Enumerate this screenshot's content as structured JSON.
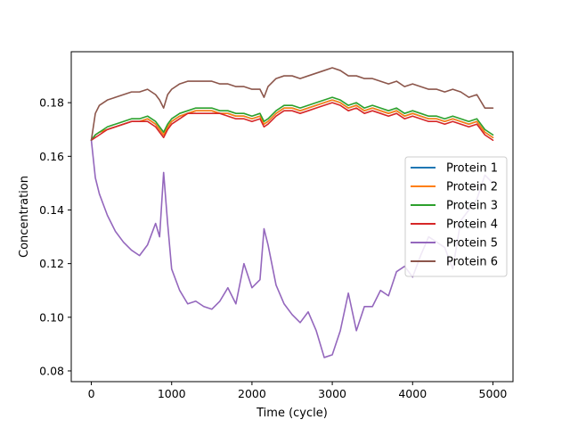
{
  "chart_data": {
    "type": "line",
    "title": "",
    "xlabel": "Time (cycle)",
    "ylabel": "Concentration",
    "xlim": [
      -250,
      5250
    ],
    "ylim": [
      0.076,
      0.199
    ],
    "xticks": [
      0,
      1000,
      2000,
      3000,
      4000,
      5000
    ],
    "xtick_labels": [
      "0",
      "1000",
      "2000",
      "3000",
      "4000",
      "5000"
    ],
    "yticks": [
      0.08,
      0.1,
      0.12,
      0.14,
      0.16,
      0.18
    ],
    "ytick_labels": [
      "0.08",
      "0.10",
      "0.12",
      "0.14",
      "0.16",
      "0.18"
    ],
    "grid": false,
    "legend_position": "center-right",
    "x": [
      0,
      50,
      100,
      200,
      300,
      400,
      500,
      600,
      700,
      800,
      850,
      900,
      950,
      1000,
      1100,
      1200,
      1300,
      1400,
      1500,
      1600,
      1700,
      1800,
      1900,
      2000,
      2100,
      2150,
      2200,
      2300,
      2400,
      2500,
      2600,
      2700,
      2800,
      2900,
      3000,
      3100,
      3200,
      3300,
      3400,
      3500,
      3600,
      3700,
      3800,
      3900,
      4000,
      4100,
      4200,
      4300,
      4400,
      4500,
      4600,
      4700,
      4800,
      4900,
      5000
    ],
    "series": [
      {
        "name": "Protein 1",
        "color": "#1f77b4",
        "values": [
          0.166,
          0.168,
          0.169,
          0.17,
          0.171,
          0.172,
          0.173,
          0.173,
          0.174,
          0.172,
          0.17,
          0.168,
          0.171,
          0.173,
          0.175,
          0.176,
          0.177,
          0.177,
          0.177,
          0.176,
          0.176,
          0.175,
          0.175,
          0.174,
          0.175,
          0.172,
          0.173,
          0.176,
          0.178,
          0.178,
          0.177,
          0.178,
          0.179,
          0.18,
          0.181,
          0.18,
          0.178,
          0.179,
          0.177,
          0.178,
          0.177,
          0.176,
          0.177,
          0.175,
          0.176,
          0.175,
          0.174,
          0.174,
          0.173,
          0.174,
          0.173,
          0.172,
          0.173,
          0.169,
          0.167
        ]
      },
      {
        "name": "Protein 2",
        "color": "#ff7f0e",
        "values": [
          0.166,
          0.168,
          0.169,
          0.17,
          0.171,
          0.172,
          0.173,
          0.173,
          0.174,
          0.172,
          0.17,
          0.168,
          0.171,
          0.173,
          0.175,
          0.176,
          0.177,
          0.177,
          0.177,
          0.176,
          0.176,
          0.175,
          0.175,
          0.174,
          0.175,
          0.172,
          0.173,
          0.176,
          0.178,
          0.178,
          0.177,
          0.178,
          0.179,
          0.18,
          0.181,
          0.18,
          0.178,
          0.179,
          0.177,
          0.178,
          0.177,
          0.176,
          0.177,
          0.175,
          0.176,
          0.175,
          0.174,
          0.174,
          0.173,
          0.174,
          0.173,
          0.172,
          0.173,
          0.169,
          0.167
        ]
      },
      {
        "name": "Protein 3",
        "color": "#2ca02c",
        "values": [
          0.166,
          0.168,
          0.169,
          0.171,
          0.172,
          0.173,
          0.174,
          0.174,
          0.175,
          0.173,
          0.171,
          0.169,
          0.172,
          0.174,
          0.176,
          0.177,
          0.178,
          0.178,
          0.178,
          0.177,
          0.177,
          0.176,
          0.176,
          0.175,
          0.176,
          0.173,
          0.174,
          0.177,
          0.179,
          0.179,
          0.178,
          0.179,
          0.18,
          0.181,
          0.182,
          0.181,
          0.179,
          0.18,
          0.178,
          0.179,
          0.178,
          0.177,
          0.178,
          0.176,
          0.177,
          0.176,
          0.175,
          0.175,
          0.174,
          0.175,
          0.174,
          0.173,
          0.174,
          0.17,
          0.168
        ]
      },
      {
        "name": "Protein 4",
        "color": "#d62728",
        "values": [
          0.166,
          0.167,
          0.168,
          0.17,
          0.171,
          0.172,
          0.173,
          0.173,
          0.173,
          0.171,
          0.169,
          0.167,
          0.17,
          0.172,
          0.174,
          0.176,
          0.176,
          0.176,
          0.176,
          0.176,
          0.175,
          0.174,
          0.174,
          0.173,
          0.174,
          0.171,
          0.172,
          0.175,
          0.177,
          0.177,
          0.176,
          0.177,
          0.178,
          0.179,
          0.18,
          0.179,
          0.177,
          0.178,
          0.176,
          0.177,
          0.176,
          0.175,
          0.176,
          0.174,
          0.175,
          0.174,
          0.173,
          0.173,
          0.172,
          0.173,
          0.172,
          0.171,
          0.172,
          0.168,
          0.166
        ]
      },
      {
        "name": "Protein 5",
        "color": "#9467bd",
        "values": [
          0.166,
          0.152,
          0.146,
          0.138,
          0.132,
          0.128,
          0.125,
          0.123,
          0.127,
          0.135,
          0.13,
          0.154,
          0.135,
          0.118,
          0.11,
          0.105,
          0.106,
          0.104,
          0.103,
          0.106,
          0.111,
          0.105,
          0.12,
          0.111,
          0.114,
          0.133,
          0.127,
          0.112,
          0.105,
          0.101,
          0.098,
          0.102,
          0.095,
          0.085,
          0.086,
          0.095,
          0.109,
          0.095,
          0.104,
          0.104,
          0.11,
          0.108,
          0.117,
          0.119,
          0.115,
          0.123,
          0.13,
          0.128,
          0.126,
          0.118,
          0.136,
          0.14,
          0.144,
          0.153,
          0.15
        ]
      },
      {
        "name": "Protein 6",
        "color": "#8c564b",
        "values": [
          0.166,
          0.176,
          0.179,
          0.181,
          0.182,
          0.183,
          0.184,
          0.184,
          0.185,
          0.183,
          0.181,
          0.178,
          0.183,
          0.185,
          0.187,
          0.188,
          0.188,
          0.188,
          0.188,
          0.187,
          0.187,
          0.186,
          0.186,
          0.185,
          0.185,
          0.182,
          0.186,
          0.189,
          0.19,
          0.19,
          0.189,
          0.19,
          0.191,
          0.192,
          0.193,
          0.192,
          0.19,
          0.19,
          0.189,
          0.189,
          0.188,
          0.187,
          0.188,
          0.186,
          0.187,
          0.186,
          0.185,
          0.185,
          0.184,
          0.185,
          0.184,
          0.182,
          0.183,
          0.178,
          0.178
        ]
      }
    ]
  }
}
